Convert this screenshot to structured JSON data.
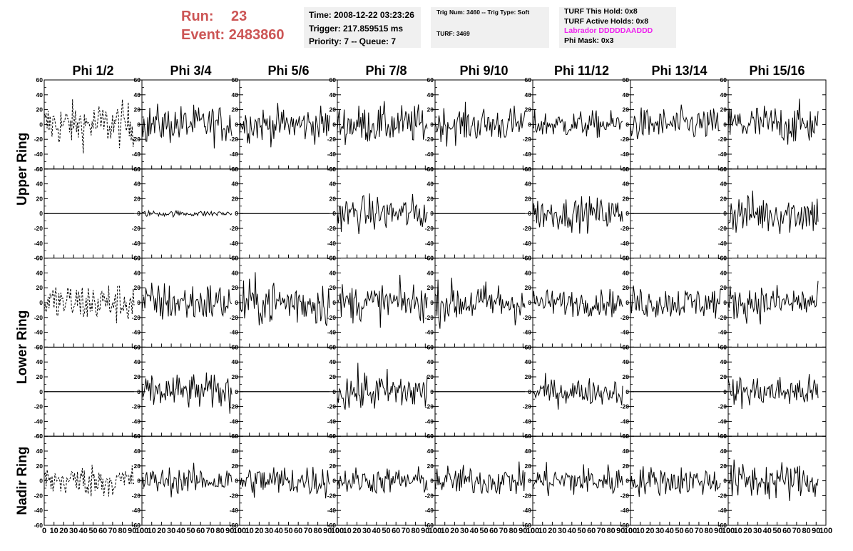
{
  "header": {
    "run_label": "Run:",
    "run_value": "23",
    "event_label": "Event:",
    "event_value": "2483860",
    "color_run": "#cc5555"
  },
  "info_time": {
    "time": "Time: 2008-12-22 03:23:26",
    "trigger": "Trigger: 217.859515 ms",
    "priority": "Priority: 7 -- Queue: 7"
  },
  "info_trig": {
    "trig": "Trig Num: 3460 -- Trig Type: Soft",
    "turf": "TURF: 3469"
  },
  "info_turf": {
    "this_hold": "TURF This Hold: 0x8",
    "active_holds": "TURF Active Holds: 0x8",
    "labrador": "Labrador DDDDDAADDD",
    "phi_mask": "Phi Mask: 0x3",
    "color_labrador": "#ee22ee"
  },
  "chart_data": {
    "type": "line",
    "columns": [
      "Phi 1/2",
      "Phi 3/4",
      "Phi 5/6",
      "Phi 7/8",
      "Phi 9/10",
      "Phi 11/12",
      "Phi 13/14",
      "Phi 15/16"
    ],
    "ring_labels": [
      "Upper Ring",
      "Lower Ring",
      "Nadir Ring"
    ],
    "rows": 5,
    "xlim": [
      0,
      100
    ],
    "ylim": [
      -60,
      60
    ],
    "x_ticks": [
      0,
      10,
      20,
      30,
      40,
      50,
      60,
      70,
      80,
      90,
      100
    ],
    "y_ticks": [
      -60,
      -40,
      -20,
      0,
      20,
      40,
      60
    ],
    "waveform_samples": [
      0,
      92
    ],
    "panel_amplitude": [
      [
        15,
        13,
        12,
        13,
        12,
        9,
        11,
        14
      ],
      [
        0,
        2,
        0,
        12,
        0,
        11,
        0,
        14
      ],
      [
        14,
        14,
        16,
        13,
        14,
        9,
        11,
        12
      ],
      [
        0,
        12,
        0,
        14,
        0,
        9,
        0,
        11
      ],
      [
        11,
        9,
        11,
        9,
        10,
        11,
        10,
        13
      ]
    ],
    "dashed_panels": [
      [
        0,
        0
      ],
      [
        2,
        0
      ],
      [
        4,
        0
      ]
    ]
  }
}
